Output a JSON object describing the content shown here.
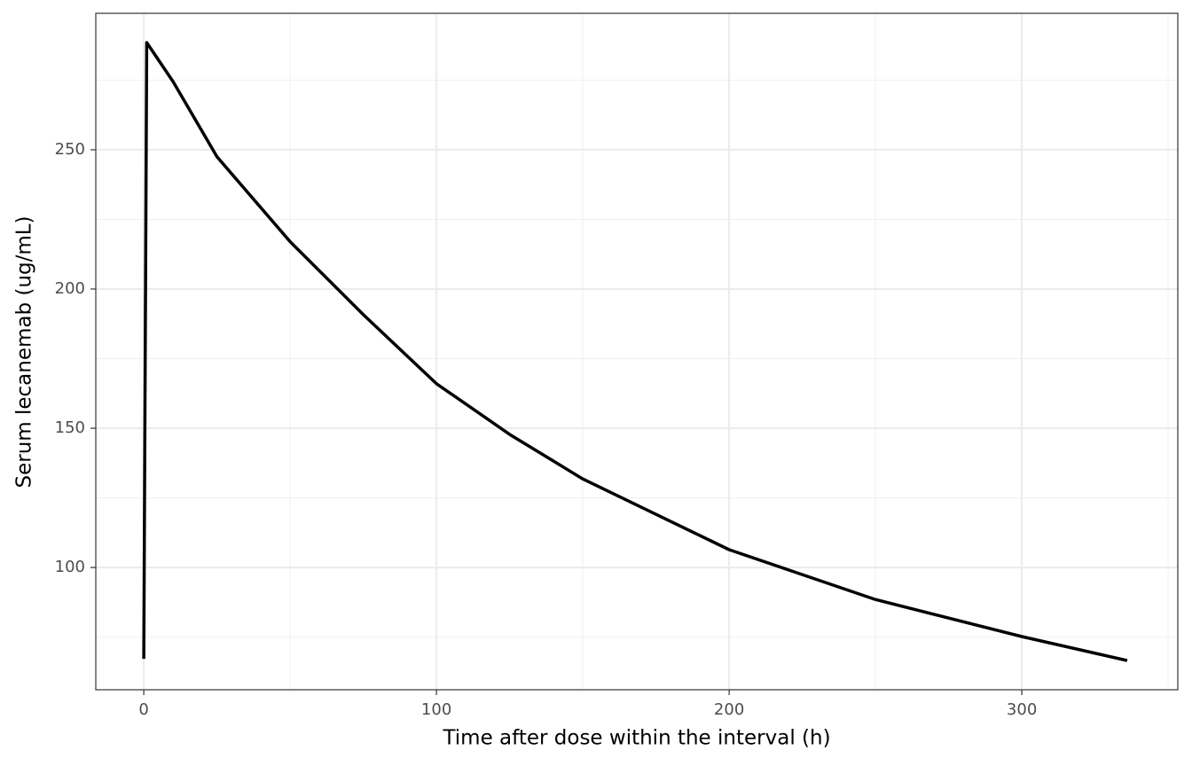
{
  "chart_data": {
    "type": "line",
    "x_label": "Time after dose within the interval (h)",
    "y_label": "Serum lecanemab (ug/mL)",
    "x": [
      0,
      1,
      10,
      25,
      50,
      75,
      100,
      125,
      150,
      200,
      250,
      300,
      336
    ],
    "series": [
      {
        "color": "#000000",
        "values": [
          67.2,
          288.5,
          274.5,
          247.5,
          217,
          190.8,
          166,
          147.8,
          131.8,
          106.4,
          88.5,
          75.2,
          66.6
        ]
      }
    ],
    "xlim": [
      -16.4,
      353.3
    ],
    "ylim": [
      56.1,
      299
    ],
    "xticks": [
      0,
      100,
      200,
      300
    ],
    "yticks": [
      100,
      150,
      200,
      250
    ],
    "xminor": [
      50,
      150,
      250,
      350
    ],
    "yminor": [
      75,
      125,
      175,
      225,
      275
    ],
    "grid": true
  }
}
